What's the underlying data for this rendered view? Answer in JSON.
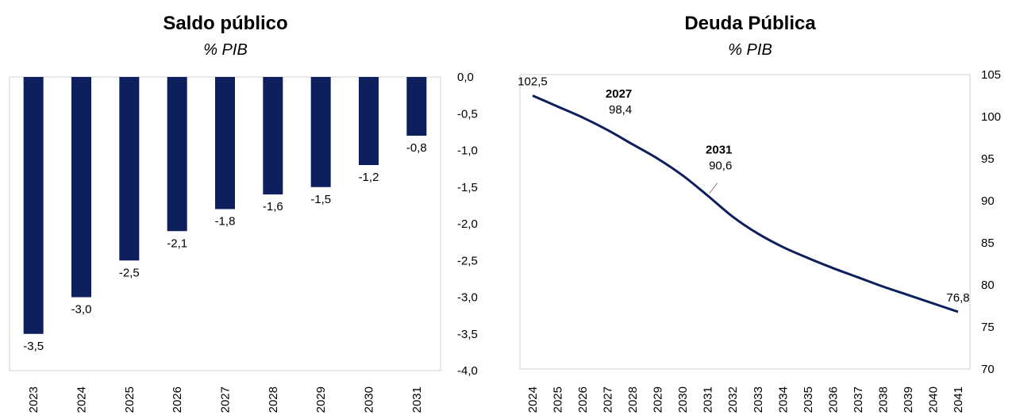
{
  "chart_data": [
    {
      "type": "bar",
      "title": "Saldo público",
      "subtitle": "% PIB",
      "categories": [
        "2023",
        "2024",
        "2025",
        "2026",
        "2027",
        "2028",
        "2029",
        "2030",
        "2031"
      ],
      "values": [
        -3.5,
        -3.0,
        -2.5,
        -2.1,
        -1.8,
        -1.6,
        -1.5,
        -1.2,
        -0.8
      ],
      "value_labels": [
        "-3,5",
        "-3,0",
        "-2,5",
        "-2,1",
        "-1,8",
        "-1,6",
        "-1,5",
        "-1,2",
        "-0,8"
      ],
      "ylim": [
        -4.0,
        0.0
      ],
      "yticks": [
        0.0,
        -0.5,
        -1.0,
        -1.5,
        -2.0,
        -2.5,
        -3.0,
        -3.5,
        -4.0
      ],
      "ytick_labels": [
        "0,0",
        "-0,5",
        "-1,0",
        "-1,5",
        "-2,0",
        "-2,5",
        "-3,0",
        "-3,5",
        "-4,0"
      ],
      "xlabel": "",
      "ylabel": "",
      "y_axis_side": "right",
      "bar_color": "#0d1f5c"
    },
    {
      "type": "line",
      "title": "Deuda Pública",
      "subtitle": "% PIB",
      "x": [
        "2024",
        "2025",
        "2026",
        "2027",
        "2028",
        "2029",
        "2030",
        "2031",
        "2032",
        "2033",
        "2034",
        "2035",
        "2036",
        "2037",
        "2038",
        "2039",
        "2040",
        "2041"
      ],
      "values": [
        102.5,
        101.2,
        99.9,
        98.4,
        96.7,
        95.0,
        93.0,
        90.6,
        88.1,
        86.1,
        84.5,
        83.2,
        82.0,
        80.9,
        79.8,
        78.8,
        77.8,
        76.8
      ],
      "ylim": [
        70,
        105
      ],
      "yticks": [
        105,
        100,
        95,
        90,
        85,
        80,
        75,
        70
      ],
      "ytick_labels": [
        "105",
        "100",
        "95",
        "90",
        "85",
        "80",
        "75",
        "70"
      ],
      "xlabel": "",
      "ylabel": "",
      "y_axis_side": "right",
      "line_color": "#0d1f5c",
      "annotations": [
        {
          "index": 0,
          "value_label": "102,5"
        },
        {
          "index": 3,
          "year_label": "2027",
          "value_label": "98,4"
        },
        {
          "index": 7,
          "year_label": "2031",
          "value_label": "90,6"
        },
        {
          "index": 17,
          "value_label": "76,8"
        }
      ]
    }
  ]
}
